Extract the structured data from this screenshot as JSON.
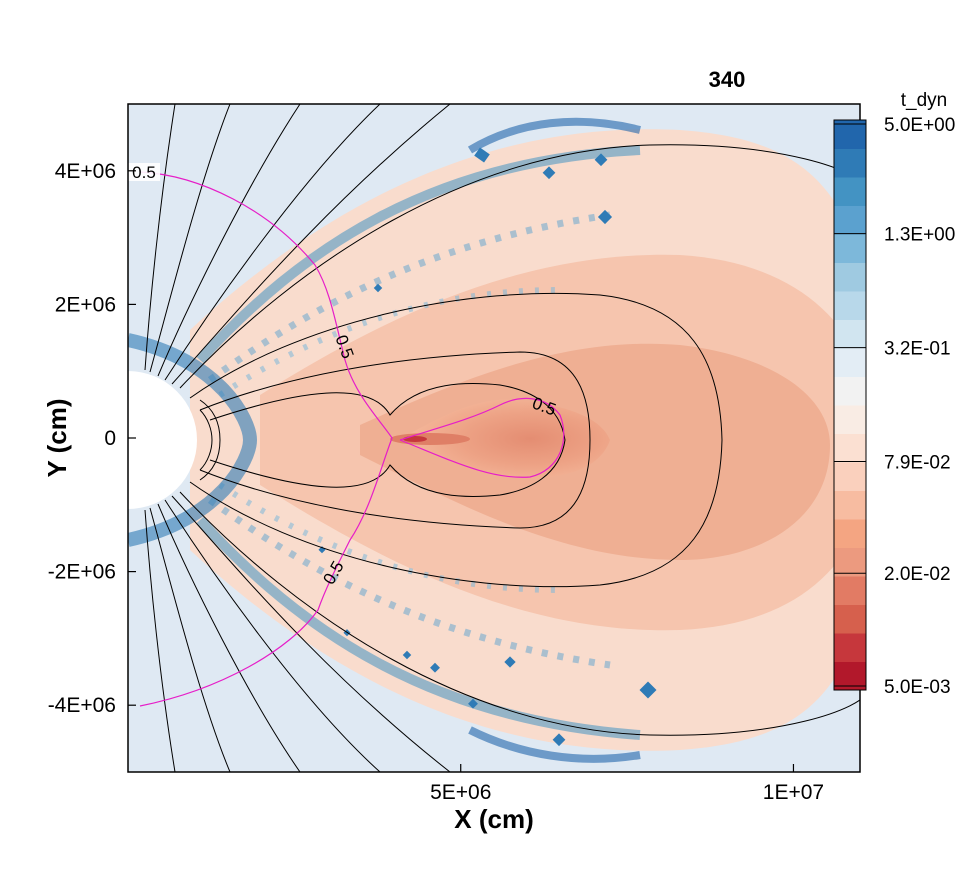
{
  "chart_data": {
    "type": "contour",
    "frame_label": "340",
    "xlabel": "X (cm)",
    "ylabel": "Y (cm)",
    "xlim": [
      0,
      11000000
    ],
    "ylim": [
      -5000000,
      5000000
    ],
    "x_ticks": [
      {
        "value": 5000000,
        "label": "5E+06"
      },
      {
        "value": 10000000,
        "label": "1E+07"
      }
    ],
    "y_ticks": [
      {
        "value": 4000000,
        "label": "4E+06"
      },
      {
        "value": 2000000,
        "label": "2E+06"
      },
      {
        "value": 0,
        "label": "0"
      },
      {
        "value": -2000000,
        "label": "-2E+06"
      },
      {
        "value": -4000000,
        "label": "-4E+06"
      }
    ],
    "colorbar": {
      "title": "t_dyn",
      "scale": "log",
      "range": [
        0.005,
        5.0
      ],
      "labels": [
        {
          "value": 5.0,
          "label": "5.0E+00"
        },
        {
          "value": 1.3,
          "label": "1.3E+00"
        },
        {
          "value": 0.32,
          "label": "3.2E-01"
        },
        {
          "value": 0.079,
          "label": "7.9E-02"
        },
        {
          "value": 0.02,
          "label": "2.0E-02"
        },
        {
          "value": 0.005,
          "label": "5.0E-03"
        }
      ],
      "colors": [
        "#b2182b",
        "#c6373c",
        "#d6604d",
        "#e27b64",
        "#ec9a7f",
        "#f4a582",
        "#f7bca1",
        "#fad0bd",
        "#fbe0d2",
        "#f9ece4",
        "#f2f2f2",
        "#e3edf5",
        "#d1e5f0",
        "#b8d8ea",
        "#9fcae1",
        "#7db8da",
        "#5ba1cf",
        "#4393c3",
        "#2f7bb6",
        "#2166ac"
      ]
    },
    "contour_level_labels": [
      {
        "value": 0.5,
        "label": "0.5"
      },
      {
        "value": 0.5,
        "label": "0.5"
      },
      {
        "value": 0.5,
        "label": "0.5"
      },
      {
        "value": 0.5,
        "label": "0.5"
      }
    ],
    "star_radius_cm": 1000000,
    "magenta_line_color": "#e61ec8",
    "field_line_color": "#000000"
  }
}
